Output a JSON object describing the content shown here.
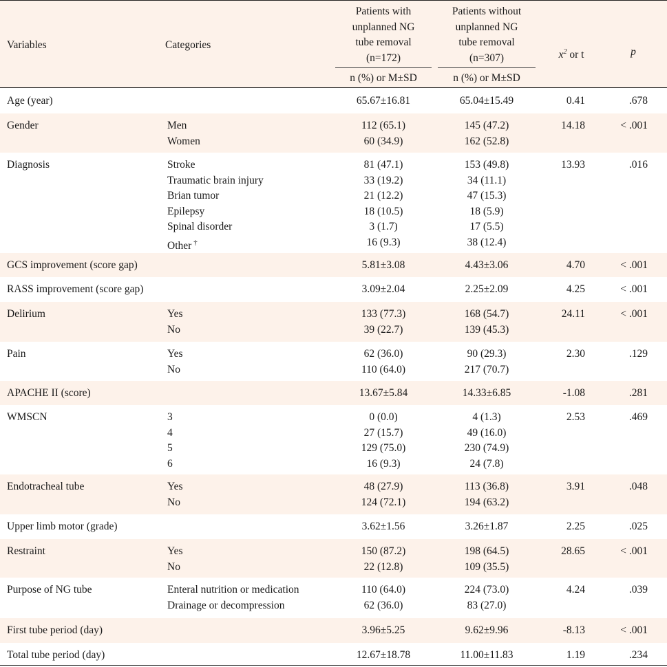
{
  "header": {
    "variables": "Variables",
    "categories": "Categories",
    "group1_title": [
      "Patients with",
      "unplanned NG",
      "tube removal",
      "(n=172)"
    ],
    "group2_title": [
      "Patients without",
      "unplanned NG",
      "tube removal",
      "(n=307)"
    ],
    "group_sub": "n (%) or M±SD",
    "stat": "x² or t",
    "p": "p"
  },
  "rows": [
    {
      "variable": "Age (year)",
      "categories": [
        ""
      ],
      "g1": [
        "65.67±16.81"
      ],
      "g2": [
        "65.04±15.49"
      ],
      "stat": "0.41",
      "p": ".678"
    },
    {
      "variable": "Gender",
      "categories": [
        "Men",
        "Women"
      ],
      "g1": [
        "112 (65.1)",
        "60 (34.9)"
      ],
      "g2": [
        "145 (47.2)",
        "162 (52.8)"
      ],
      "stat": "14.18",
      "p": "< .001"
    },
    {
      "variable": "Diagnosis",
      "categories": [
        "Stroke",
        "Traumatic brain injury",
        "Brian tumor",
        "Epilepsy",
        "Spinal disorder",
        "Other"
      ],
      "g1": [
        "81 (47.1)",
        "33 (19.2)",
        "21 (12.2)",
        "18 (10.5)",
        "3 (1.7)",
        "16 (9.3)"
      ],
      "g2": [
        "153 (49.8)",
        "34 (11.1)",
        "47 (15.3)",
        "18 (5.9)",
        "17 (5.5)",
        "38 (12.4)"
      ],
      "stat": "13.93",
      "p": ".016"
    },
    {
      "variable": "GCS improvement (score gap)",
      "categories": [
        ""
      ],
      "g1": [
        "5.81±3.08"
      ],
      "g2": [
        "4.43±3.06"
      ],
      "stat": "4.70",
      "p": "< .001"
    },
    {
      "variable": "RASS improvement (score gap)",
      "categories": [
        ""
      ],
      "g1": [
        "3.09±2.04"
      ],
      "g2": [
        "2.25±2.09"
      ],
      "stat": "4.25",
      "p": "< .001"
    },
    {
      "variable": "Delirium",
      "categories": [
        "Yes",
        "No"
      ],
      "g1": [
        "133 (77.3)",
        "39 (22.7)"
      ],
      "g2": [
        "168 (54.7)",
        "139 (45.3)"
      ],
      "stat": "24.11",
      "p": "< .001"
    },
    {
      "variable": "Pain",
      "categories": [
        "Yes",
        "No"
      ],
      "g1": [
        "62 (36.0)",
        "110 (64.0)"
      ],
      "g2": [
        "90 (29.3)",
        "217 (70.7)"
      ],
      "stat": "2.30",
      "p": ".129"
    },
    {
      "variable": "APACHE II (score)",
      "categories": [
        ""
      ],
      "g1": [
        "13.67±5.84"
      ],
      "g2": [
        "14.33±6.85"
      ],
      "stat": "-1.08",
      "p": ".281"
    },
    {
      "variable": "WMSCN",
      "categories": [
        "3",
        "4",
        "5",
        "6"
      ],
      "g1": [
        "0 (0.0)",
        "27 (15.7)",
        "129 (75.0)",
        "16 (9.3)"
      ],
      "g2": [
        "4 (1.3)",
        "49 (16.0)",
        "230 (74.9)",
        "24 (7.8)"
      ],
      "stat": "2.53",
      "p": ".469"
    },
    {
      "variable": "Endotracheal tube",
      "categories": [
        "Yes",
        "No"
      ],
      "g1": [
        "48 (27.9)",
        "124 (72.1)"
      ],
      "g2": [
        "113 (36.8)",
        "194 (63.2)"
      ],
      "stat": "3.91",
      "p": ".048"
    },
    {
      "variable": "Upper limb motor (grade)",
      "categories": [
        ""
      ],
      "g1": [
        "3.62±1.56"
      ],
      "g2": [
        "3.26±1.87"
      ],
      "stat": "2.25",
      "p": ".025"
    },
    {
      "variable": "Restraint",
      "categories": [
        "Yes",
        "No"
      ],
      "g1": [
        "150 (87.2)",
        "22 (12.8)"
      ],
      "g2": [
        "198 (64.5)",
        "109 (35.5)"
      ],
      "stat": "28.65",
      "p": "< .001"
    },
    {
      "variable": "Purpose of NG tube",
      "categories": [
        "Enteral nutrition or medication",
        "Drainage or decompression"
      ],
      "g1": [
        "110 (64.0)",
        "62 (36.0)"
      ],
      "g2": [
        "224 (73.0)",
        "83 (27.0)"
      ],
      "stat": "4.24",
      "p": ".039"
    },
    {
      "variable": "First tube period (day)",
      "categories": [
        ""
      ],
      "g1": [
        "3.96±5.25"
      ],
      "g2": [
        "9.62±9.96"
      ],
      "stat": "-8.13",
      "p": "< .001"
    },
    {
      "variable": "Total tube period (day)",
      "categories": [
        ""
      ],
      "g1": [
        "12.67±18.78"
      ],
      "g2": [
        "11.00±11.83"
      ],
      "stat": "1.19",
      "p": ".234"
    }
  ],
  "footnote_marker": "†",
  "colors": {
    "tint": "#fdf2ea",
    "rule": "#222222",
    "text": "#1a1a1a"
  }
}
